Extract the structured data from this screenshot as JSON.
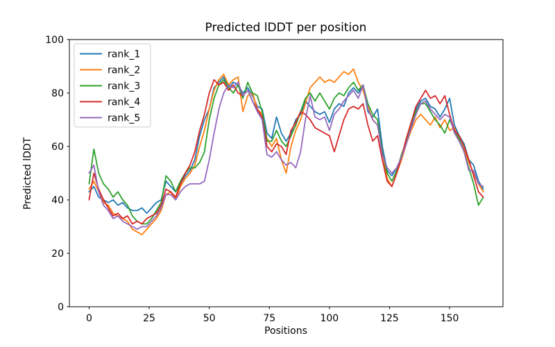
{
  "figure": {
    "background": "#ffffff"
  },
  "chart_data": {
    "type": "line",
    "title": "Predicted lDDT per position",
    "xlabel": "Positions",
    "ylabel": "Predicted lDDT",
    "xlim": [
      -8.2,
      172.2
    ],
    "ylim": [
      0,
      100
    ],
    "xticks": [
      0,
      25,
      50,
      75,
      100,
      125,
      150
    ],
    "yticks": [
      0,
      20,
      40,
      60,
      80,
      100
    ],
    "grid": false,
    "legend_position": "upper left",
    "x_start": 0,
    "x_step": 2,
    "series": [
      {
        "name": "rank_1",
        "color": "#1f77b4",
        "values": [
          43,
          45,
          41,
          40,
          39,
          40,
          38,
          39,
          37,
          36,
          36,
          37,
          35,
          37,
          39,
          40,
          47,
          45,
          43,
          46,
          49,
          51,
          55,
          64,
          70,
          74,
          82,
          84,
          86,
          82,
          84,
          83,
          80,
          82,
          79,
          75,
          74,
          65,
          63,
          71,
          65,
          62,
          65,
          70,
          72,
          77,
          75,
          73,
          72,
          73,
          69,
          74,
          76,
          75,
          80,
          82,
          80,
          83,
          73,
          71,
          74,
          60,
          51,
          49,
          52,
          56,
          62,
          68,
          74,
          77,
          78,
          75,
          74,
          71,
          74,
          78,
          68,
          64,
          61,
          55,
          53,
          47,
          44
        ]
      },
      {
        "name": "rank_2",
        "color": "#ff7f0e",
        "values": [
          44,
          47,
          43,
          39,
          38,
          35,
          34,
          33,
          32,
          29,
          28,
          27,
          29,
          31,
          33,
          36,
          42,
          43,
          40,
          45,
          48,
          50,
          53,
          60,
          66,
          74,
          81,
          85,
          87,
          83,
          85,
          86,
          73,
          79,
          80,
          74,
          72,
          63,
          60,
          63,
          55,
          50,
          60,
          66,
          70,
          76,
          82,
          84,
          86,
          84,
          85,
          84,
          86,
          88,
          87,
          89,
          84,
          81,
          75,
          70,
          68,
          58,
          48,
          45,
          50,
          55,
          61,
          66,
          70,
          72,
          70,
          68,
          71,
          67,
          70,
          66,
          67,
          62,
          59,
          54,
          50,
          46,
          43
        ]
      },
      {
        "name": "rank_3",
        "color": "#2ca02c",
        "values": [
          46,
          59,
          50,
          46,
          44,
          41,
          43,
          40,
          38,
          34,
          32,
          31,
          31,
          33,
          36,
          39,
          49,
          47,
          43,
          47,
          50,
          52,
          52,
          54,
          58,
          70,
          78,
          83,
          85,
          82,
          80,
          83,
          78,
          84,
          80,
          79,
          73,
          62,
          62,
          66,
          62,
          60,
          64,
          68,
          73,
          78,
          80,
          77,
          80,
          77,
          74,
          78,
          80,
          79,
          82,
          84,
          81,
          83,
          76,
          72,
          70,
          58,
          50,
          47,
          51,
          57,
          62,
          69,
          73,
          76,
          76,
          73,
          70,
          68,
          65,
          70,
          66,
          63,
          58,
          52,
          46,
          38,
          41
        ]
      },
      {
        "name": "rank_4",
        "color": "#d62728",
        "values": [
          40,
          50,
          44,
          40,
          37,
          34,
          35,
          33,
          34,
          31,
          32,
          31,
          33,
          34,
          35,
          38,
          44,
          43,
          41,
          46,
          50,
          53,
          58,
          66,
          72,
          80,
          85,
          83,
          84,
          81,
          83,
          80,
          79,
          81,
          77,
          74,
          71,
          60,
          58,
          61,
          60,
          57,
          66,
          69,
          73,
          72,
          70,
          67,
          66,
          65,
          64,
          58,
          64,
          70,
          74,
          75,
          74,
          76,
          68,
          62,
          64,
          55,
          47,
          45,
          50,
          56,
          63,
          69,
          75,
          78,
          81,
          78,
          79,
          76,
          79,
          72,
          66,
          64,
          60,
          55,
          49,
          43,
          41
        ]
      },
      {
        "name": "rank_5",
        "color": "#9467bd",
        "values": [
          50,
          53,
          43,
          38,
          36,
          33,
          34,
          32,
          31,
          30,
          29,
          30,
          30,
          32,
          34,
          37,
          42,
          42,
          40,
          43,
          45,
          46,
          46,
          46,
          47,
          55,
          65,
          74,
          80,
          83,
          82,
          84,
          79,
          81,
          77,
          73,
          70,
          57,
          56,
          58,
          55,
          53,
          54,
          52,
          58,
          70,
          79,
          71,
          70,
          71,
          66,
          72,
          74,
          77,
          79,
          81,
          78,
          83,
          74,
          70,
          68,
          57,
          52,
          50,
          52,
          56,
          61,
          67,
          72,
          76,
          77,
          74,
          72,
          70,
          72,
          71,
          65,
          62,
          58,
          51,
          51,
          46,
          45
        ]
      }
    ]
  }
}
